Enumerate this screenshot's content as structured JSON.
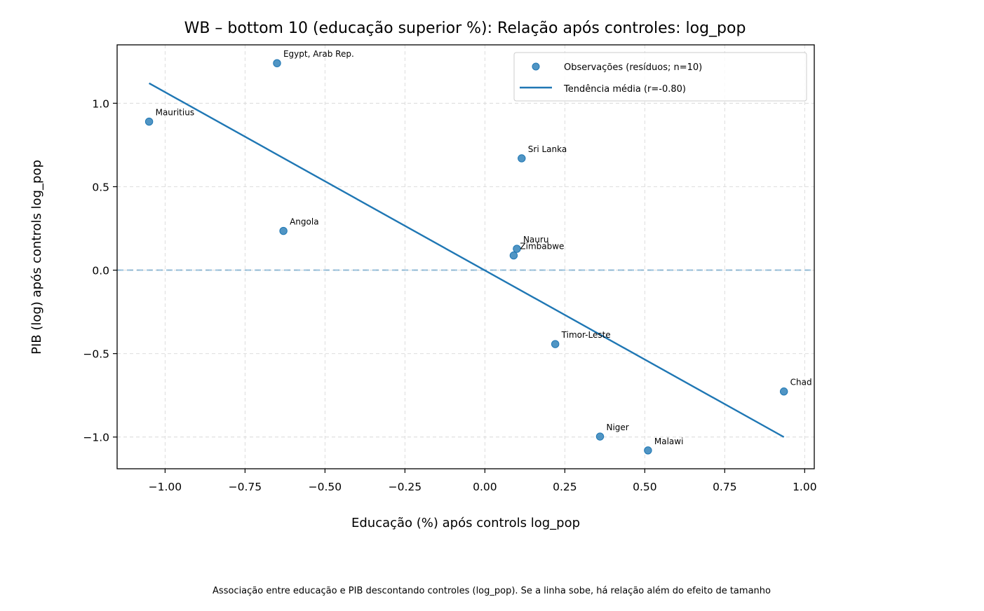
{
  "chart_data": {
    "type": "scatter",
    "title": "WB – bottom 10 (educação superior %): Relação após controles: log_pop",
    "xlabel": "Educação (%) após controls log_pop",
    "ylabel": "PIB (log) após controls log_pop",
    "caption": "Associação entre educação e PIB descontando controles (log_pop). Se a linha sobe, há relação além do efeito de tamanho",
    "xlim": [
      -1.15,
      1.03
    ],
    "ylim": [
      -1.19,
      1.35
    ],
    "x_ticks": [
      -1.0,
      -0.75,
      -0.5,
      -0.25,
      0.0,
      0.25,
      0.5,
      0.75,
      1.0
    ],
    "x_tick_labels": [
      "−1.00",
      "−0.75",
      "−0.50",
      "−0.25",
      "0.00",
      "0.25",
      "0.50",
      "0.75",
      "1.00"
    ],
    "y_ticks": [
      -1.0,
      -0.5,
      0.0,
      0.5,
      1.0
    ],
    "y_tick_labels": [
      "−1.0",
      "−0.5",
      "0.0",
      "0.5",
      "1.0"
    ],
    "grid": true,
    "legend_position": "top-right",
    "colors": {
      "points": "#1f77b4",
      "trend": "#1f77b4",
      "zero_line": "#1f77b4"
    },
    "series": [
      {
        "name": "Observações (resíduos; n=10)",
        "type": "scatter",
        "points": [
          {
            "label": "Egypt, Arab Rep.",
            "x": -0.65,
            "y": 1.24
          },
          {
            "label": "Mauritius",
            "x": -1.05,
            "y": 0.89
          },
          {
            "label": "Sri Lanka",
            "x": 0.115,
            "y": 0.67
          },
          {
            "label": "Angola",
            "x": -0.63,
            "y": 0.235
          },
          {
            "label": "Nauru",
            "x": 0.1,
            "y": 0.128
          },
          {
            "label": "Zimbabwe",
            "x": 0.09,
            "y": 0.088
          },
          {
            "label": "Timor-Leste",
            "x": 0.22,
            "y": -0.443
          },
          {
            "label": "Chad",
            "x": 0.935,
            "y": -0.727
          },
          {
            "label": "Niger",
            "x": 0.36,
            "y": -0.997
          },
          {
            "label": "Malawi",
            "x": 0.51,
            "y": -1.08
          }
        ]
      },
      {
        "name": "Tendência média (r=-0.80)",
        "type": "line",
        "x": [
          -1.05,
          0.935
        ],
        "y": [
          1.12,
          -1.0
        ]
      }
    ],
    "reference_line": {
      "y": 0.0,
      "style": "dashed"
    }
  }
}
